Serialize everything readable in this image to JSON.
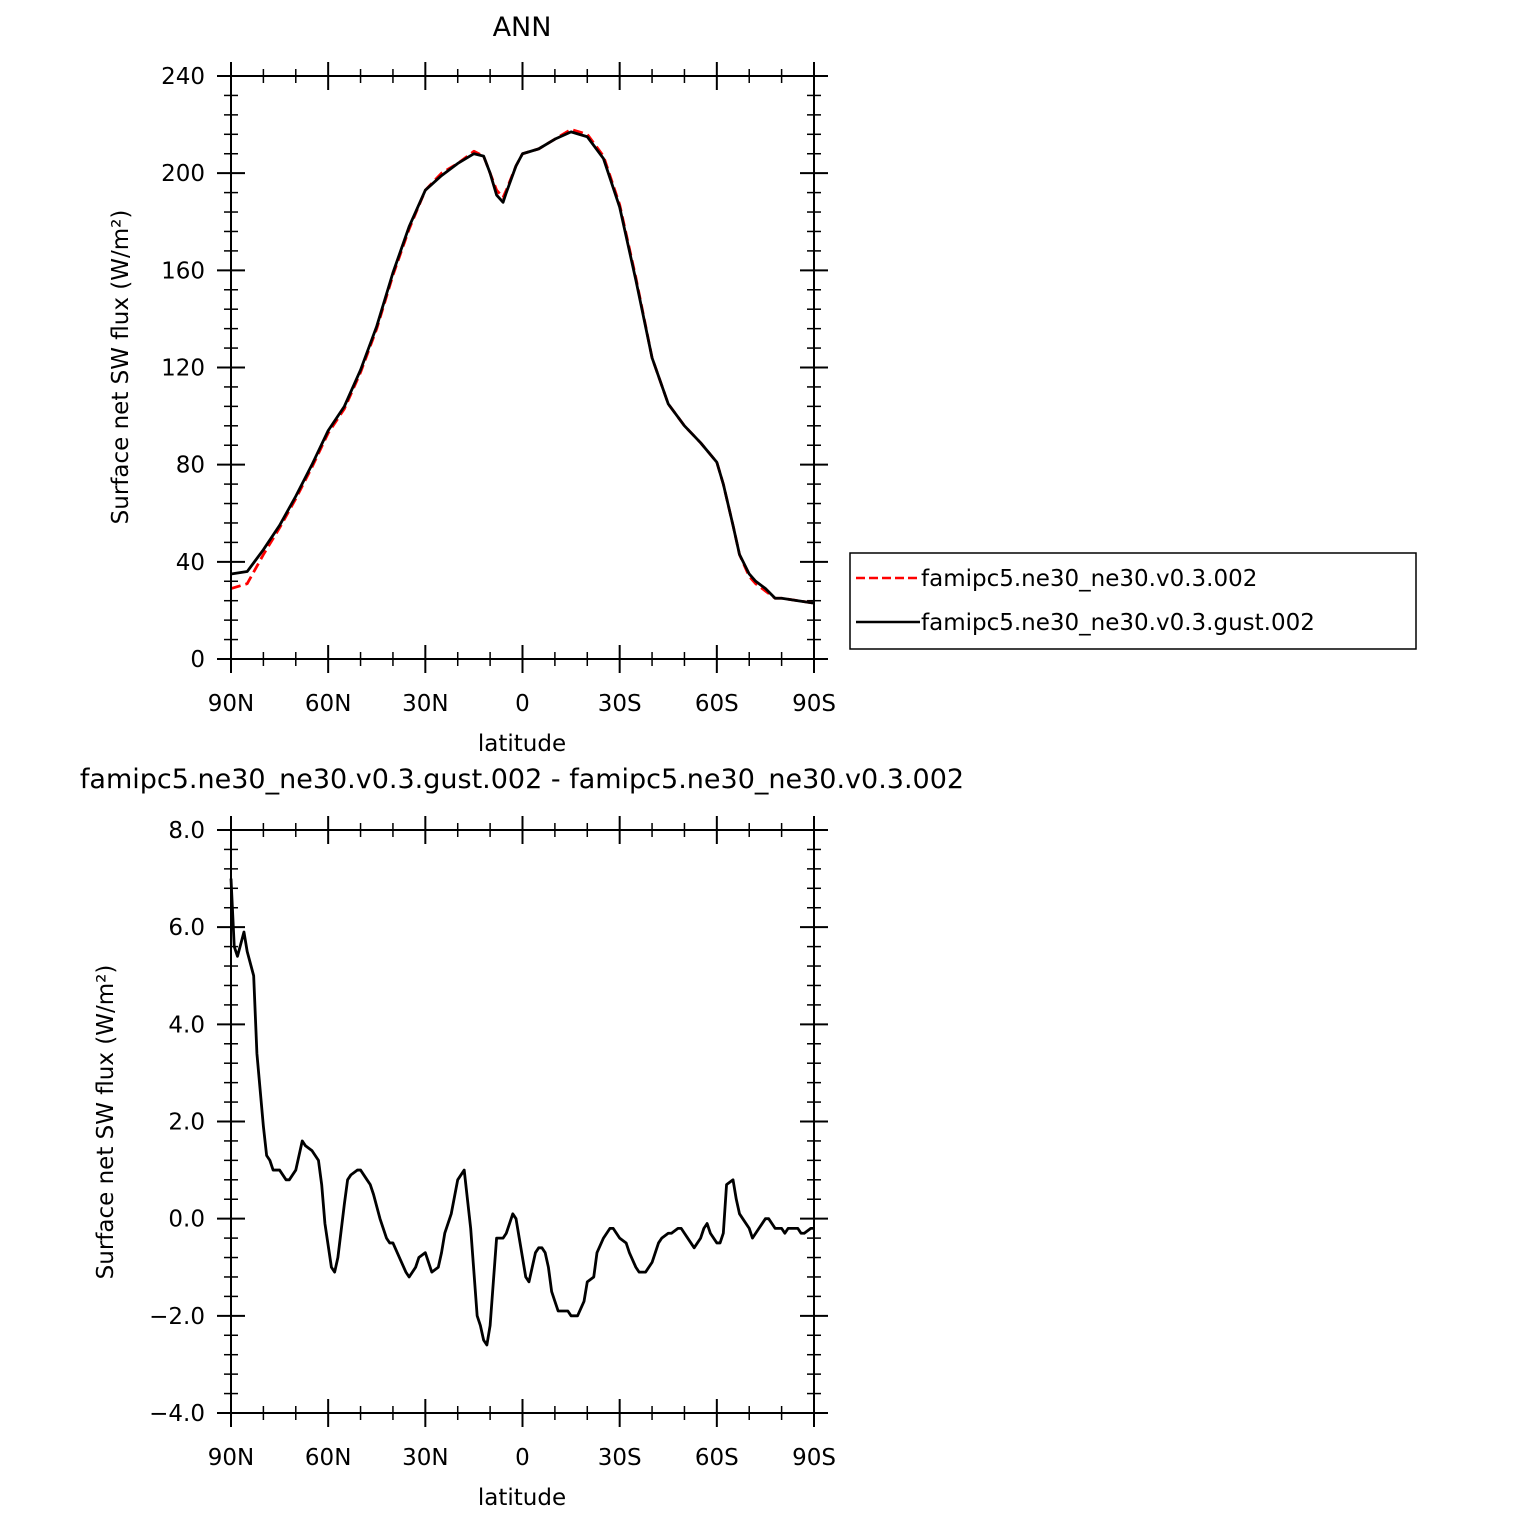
{
  "chart_data": [
    {
      "type": "line",
      "title": "ANN",
      "xlabel": "latitude",
      "ylabel": "Surface net SW flux (W/m²)",
      "xlim": [
        90,
        -90
      ],
      "ylim": [
        0,
        240
      ],
      "x_ticks": [
        {
          "value": 90,
          "label": "90N"
        },
        {
          "value": 60,
          "label": "60N"
        },
        {
          "value": 30,
          "label": "30N"
        },
        {
          "value": 0,
          "label": "0"
        },
        {
          "value": -30,
          "label": "30S"
        },
        {
          "value": -60,
          "label": "60S"
        },
        {
          "value": -90,
          "label": "90S"
        }
      ],
      "y_ticks": [
        {
          "value": 0,
          "label": "0"
        },
        {
          "value": 40,
          "label": "40"
        },
        {
          "value": 80,
          "label": "80"
        },
        {
          "value": 120,
          "label": "120"
        },
        {
          "value": 160,
          "label": "160"
        },
        {
          "value": 200,
          "label": "200"
        },
        {
          "value": 240,
          "label": "240"
        }
      ],
      "grid": false,
      "legend_position": "right",
      "x": [
        90,
        85,
        80,
        75,
        70,
        65,
        60,
        55,
        50,
        45,
        40,
        35,
        30,
        25,
        20,
        15,
        12,
        10,
        8,
        6,
        5,
        2,
        0,
        -5,
        -10,
        -15,
        -20,
        -25,
        -30,
        -35,
        -40,
        -45,
        -50,
        -55,
        -60,
        -62,
        -65,
        -67,
        -70,
        -72,
        -75,
        -78,
        -80,
        -85,
        -90
      ],
      "series": [
        {
          "name": "famipc5.ne30_ne30.v0.3.002",
          "color": "#ff0000",
          "dash": "dashed",
          "values": [
            29,
            31,
            43,
            54,
            66,
            79,
            93,
            103,
            118,
            136,
            158,
            177,
            193,
            200,
            204,
            209,
            207,
            200,
            193,
            190,
            193,
            203,
            208,
            210,
            214,
            218,
            216,
            207,
            187,
            157,
            124,
            105,
            96,
            89,
            81,
            72,
            55,
            43,
            34,
            31,
            28,
            25,
            25,
            24,
            23
          ]
        },
        {
          "name": "famipc5.ne30_ne30.v0.3.gust.002",
          "color": "#000000",
          "dash": "solid",
          "values": [
            35,
            36,
            45,
            55,
            67,
            80,
            94,
            104,
            119,
            137,
            159,
            178,
            193,
            199,
            204,
            208,
            207,
            200,
            191,
            188,
            192,
            203,
            208,
            210,
            214,
            217,
            215,
            206,
            186,
            156,
            124,
            105,
            96,
            89,
            81,
            72,
            55,
            43,
            35,
            32,
            29,
            25,
            25,
            24,
            23
          ]
        }
      ]
    },
    {
      "type": "line",
      "title": "famipc5.ne30_ne30.v0.3.gust.002 - famipc5.ne30_ne30.v0.3.002",
      "xlabel": "latitude",
      "ylabel": "Surface net SW flux (W/m²)",
      "xlim": [
        90,
        -90
      ],
      "ylim": [
        -4,
        8
      ],
      "x_ticks": [
        {
          "value": 90,
          "label": "90N"
        },
        {
          "value": 60,
          "label": "60N"
        },
        {
          "value": 30,
          "label": "30N"
        },
        {
          "value": 0,
          "label": "0"
        },
        {
          "value": -30,
          "label": "30S"
        },
        {
          "value": -60,
          "label": "60S"
        },
        {
          "value": -90,
          "label": "90S"
        }
      ],
      "y_ticks": [
        {
          "value": -4,
          "label": "−4.0"
        },
        {
          "value": -2,
          "label": "−2.0"
        },
        {
          "value": 0,
          "label": "0.0"
        },
        {
          "value": 2,
          "label": "2.0"
        },
        {
          "value": 4,
          "label": "4.0"
        },
        {
          "value": 6,
          "label": "6.0"
        },
        {
          "value": 8,
          "label": "8.0"
        }
      ],
      "grid": false,
      "x": [
        90,
        89,
        88,
        86,
        85,
        83,
        82,
        80,
        79,
        78,
        77,
        75,
        73,
        72,
        70,
        68,
        67,
        65,
        63,
        62,
        61,
        59,
        58,
        57,
        55,
        54,
        53,
        51,
        50,
        48,
        47,
        46,
        44,
        42,
        41,
        40,
        38,
        36,
        35,
        33,
        32,
        30,
        29,
        28,
        26,
        25,
        24,
        22,
        20,
        18,
        16,
        14,
        13,
        12,
        11,
        10,
        9,
        8,
        7,
        6,
        5,
        4,
        3,
        2,
        1,
        0,
        -1,
        -2,
        -3,
        -4,
        -5,
        -6,
        -7,
        -8,
        -9,
        -10,
        -11,
        -13,
        -14,
        -15,
        -17,
        -19,
        -20,
        -22,
        -23,
        -25,
        -26,
        -27,
        -28,
        -29,
        -30,
        -32,
        -33,
        -35,
        -36,
        -38,
        -40,
        -41,
        -42,
        -43,
        -45,
        -46,
        -48,
        -49,
        -50,
        -52,
        -53,
        -55,
        -56,
        -57,
        -58,
        -60,
        -61,
        -62,
        -63,
        -65,
        -66,
        -67,
        -68,
        -70,
        -71,
        -72,
        -73,
        -75,
        -76,
        -77,
        -78,
        -80,
        -81,
        -82,
        -83,
        -84,
        -85,
        -86,
        -87,
        -89,
        -90
      ],
      "series": [
        {
          "color": "#000000",
          "dash": "solid",
          "values": [
            7.0,
            5.6,
            5.4,
            5.9,
            5.5,
            5.0,
            3.4,
            1.9,
            1.3,
            1.2,
            1.0,
            1.0,
            0.8,
            0.8,
            1.0,
            1.6,
            1.5,
            1.4,
            1.2,
            0.7,
            -0.1,
            -1.0,
            -1.1,
            -0.8,
            0.3,
            0.8,
            0.9,
            1.0,
            1.0,
            0.8,
            0.7,
            0.5,
            0.0,
            -0.4,
            -0.5,
            -0.5,
            -0.8,
            -1.1,
            -1.2,
            -1.0,
            -0.8,
            -0.7,
            -0.9,
            -1.1,
            -1.0,
            -0.7,
            -0.3,
            0.1,
            0.8,
            1.0,
            -0.2,
            -2.0,
            -2.2,
            -2.5,
            -2.6,
            -2.2,
            -1.3,
            -0.4,
            -0.4,
            -0.4,
            -0.3,
            -0.1,
            0.1,
            0.0,
            -0.4,
            -0.8,
            -1.2,
            -1.3,
            -1.0,
            -0.7,
            -0.6,
            -0.6,
            -0.7,
            -1.0,
            -1.5,
            -1.7,
            -1.9,
            -1.9,
            -1.9,
            -2.0,
            -2.0,
            -1.7,
            -1.3,
            -1.2,
            -0.7,
            -0.4,
            -0.3,
            -0.2,
            -0.2,
            -0.3,
            -0.4,
            -0.5,
            -0.7,
            -1.0,
            -1.1,
            -1.1,
            -0.9,
            -0.7,
            -0.5,
            -0.4,
            -0.3,
            -0.3,
            -0.2,
            -0.2,
            -0.3,
            -0.5,
            -0.6,
            -0.4,
            -0.2,
            -0.1,
            -0.3,
            -0.5,
            -0.5,
            -0.3,
            0.7,
            0.8,
            0.4,
            0.1,
            0.0,
            -0.2,
            -0.4,
            -0.3,
            -0.2,
            0.0,
            0.0,
            -0.1,
            -0.2,
            -0.2,
            -0.3,
            -0.2,
            -0.2,
            -0.2,
            -0.2,
            -0.3,
            -0.3,
            -0.2,
            -0.2
          ]
        }
      ]
    }
  ]
}
